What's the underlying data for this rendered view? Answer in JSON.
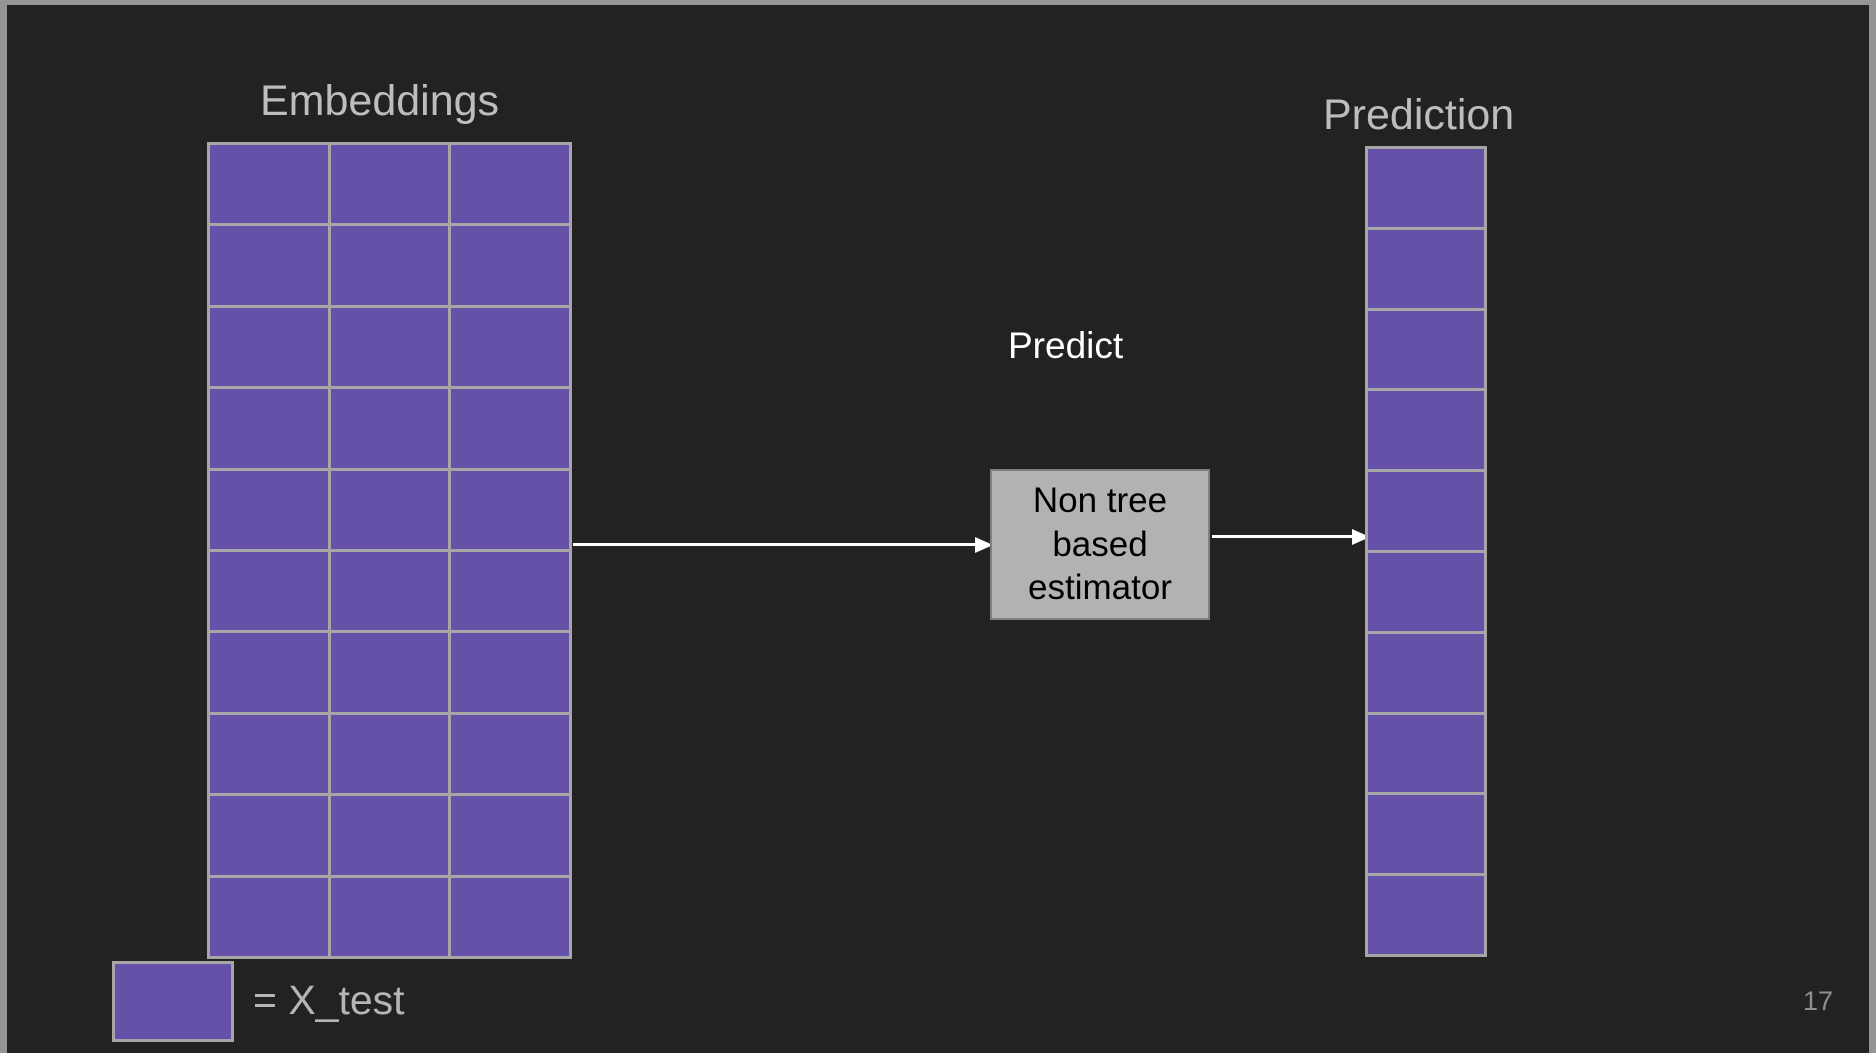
{
  "page": {
    "page_number": "17",
    "frame_color": "#959595",
    "slide_background": "#222222"
  },
  "embeddings": {
    "title": "Embeddings",
    "rows": 10,
    "cols": 3
  },
  "prediction": {
    "title": "Prediction",
    "rows": 10,
    "cols": 1
  },
  "flow": {
    "predict_label": "Predict",
    "estimator_label": "Non tree based estimator"
  },
  "legend": {
    "label": "= X_test"
  },
  "colors": {
    "cell_fill": "#6551a8",
    "cell_border": "#a6a6a6",
    "estimator_box_fill": "#b2b2b2",
    "estimator_box_border": "#7f7f7f",
    "estimator_text": "#000000",
    "title_text": "#bdbdbd",
    "predict_text": "#ffffff",
    "legend_text": "#b5b5b5",
    "page_number_text": "#8f8f8f",
    "arrow": "#ffffff"
  }
}
